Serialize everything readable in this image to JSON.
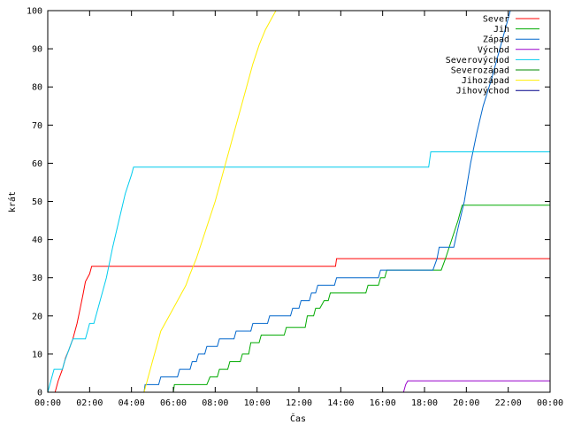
{
  "chart_data": {
    "type": "line",
    "xlabel": "Čas",
    "ylabel": "krát",
    "xlim": [
      0,
      24
    ],
    "ylim": [
      0,
      100
    ],
    "x_ticks": [
      {
        "value": 0,
        "label": "00:00"
      },
      {
        "value": 2,
        "label": "02:00"
      },
      {
        "value": 4,
        "label": "04:00"
      },
      {
        "value": 6,
        "label": "06:00"
      },
      {
        "value": 8,
        "label": "08:00"
      },
      {
        "value": 10,
        "label": "10:00"
      },
      {
        "value": 12,
        "label": "12:00"
      },
      {
        "value": 14,
        "label": "14:00"
      },
      {
        "value": 16,
        "label": "16:00"
      },
      {
        "value": 18,
        "label": "18:00"
      },
      {
        "value": 20,
        "label": "20:00"
      },
      {
        "value": 22,
        "label": "22:00"
      },
      {
        "value": 24,
        "label": "00:00"
      }
    ],
    "y_ticks": [
      0,
      10,
      20,
      30,
      40,
      50,
      60,
      70,
      80,
      90,
      100
    ],
    "grid": false,
    "legend_position": "top-right",
    "series": [
      {
        "name": "Sever",
        "color": "#ff0000",
        "points": [
          [
            0.35,
            0
          ],
          [
            0.5,
            3
          ],
          [
            0.7,
            6
          ],
          [
            0.85,
            9
          ],
          [
            1.0,
            11
          ],
          [
            1.2,
            14
          ],
          [
            1.4,
            18
          ],
          [
            1.55,
            22
          ],
          [
            1.7,
            26
          ],
          [
            1.8,
            29
          ],
          [
            2.0,
            31
          ],
          [
            2.1,
            33
          ],
          [
            13.75,
            33
          ],
          [
            13.8,
            35
          ],
          [
            24,
            35
          ]
        ]
      },
      {
        "name": "Jih",
        "color": "#00aa00",
        "points": [
          [
            6.0,
            0
          ],
          [
            6.05,
            2
          ],
          [
            7.6,
            2
          ],
          [
            7.75,
            4
          ],
          [
            8.1,
            4
          ],
          [
            8.2,
            6
          ],
          [
            8.6,
            6
          ],
          [
            8.7,
            8
          ],
          [
            9.2,
            8
          ],
          [
            9.3,
            10
          ],
          [
            9.6,
            10
          ],
          [
            9.7,
            13
          ],
          [
            10.1,
            13
          ],
          [
            10.2,
            15
          ],
          [
            11.3,
            15
          ],
          [
            11.4,
            17
          ],
          [
            12.3,
            17
          ],
          [
            12.4,
            20
          ],
          [
            12.7,
            20
          ],
          [
            12.8,
            22
          ],
          [
            13.0,
            22
          ],
          [
            13.2,
            24
          ],
          [
            13.4,
            24
          ],
          [
            13.5,
            26
          ],
          [
            15.2,
            26
          ],
          [
            15.3,
            28
          ],
          [
            15.8,
            28
          ],
          [
            15.9,
            30
          ],
          [
            16.1,
            30
          ],
          [
            16.2,
            32
          ],
          [
            18.8,
            32
          ],
          [
            19.0,
            35
          ],
          [
            19.3,
            40
          ],
          [
            19.6,
            45
          ],
          [
            19.8,
            49
          ],
          [
            24,
            49
          ]
        ]
      },
      {
        "name": "Západ",
        "color": "#0066cc",
        "points": [
          [
            4.6,
            0
          ],
          [
            4.65,
            2
          ],
          [
            5.3,
            2
          ],
          [
            5.4,
            4
          ],
          [
            6.2,
            4
          ],
          [
            6.3,
            6
          ],
          [
            6.8,
            6
          ],
          [
            6.9,
            8
          ],
          [
            7.1,
            8
          ],
          [
            7.2,
            10
          ],
          [
            7.5,
            10
          ],
          [
            7.6,
            12
          ],
          [
            8.1,
            12
          ],
          [
            8.2,
            14
          ],
          [
            8.9,
            14
          ],
          [
            9.0,
            16
          ],
          [
            9.7,
            16
          ],
          [
            9.8,
            18
          ],
          [
            10.5,
            18
          ],
          [
            10.6,
            20
          ],
          [
            11.6,
            20
          ],
          [
            11.7,
            22
          ],
          [
            12.0,
            22
          ],
          [
            12.1,
            24
          ],
          [
            12.5,
            24
          ],
          [
            12.6,
            26
          ],
          [
            12.8,
            26
          ],
          [
            12.9,
            28
          ],
          [
            13.7,
            28
          ],
          [
            13.8,
            30
          ],
          [
            15.8,
            30
          ],
          [
            15.9,
            32
          ],
          [
            18.4,
            32
          ],
          [
            18.6,
            35
          ],
          [
            18.7,
            38
          ],
          [
            19.4,
            38
          ],
          [
            19.6,
            43
          ],
          [
            19.9,
            50
          ],
          [
            20.2,
            60
          ],
          [
            20.5,
            68
          ],
          [
            20.8,
            75
          ],
          [
            21.2,
            82
          ],
          [
            21.6,
            90
          ],
          [
            22.0,
            98
          ],
          [
            22.1,
            100
          ]
        ]
      },
      {
        "name": "Východ",
        "color": "#9900cc",
        "points": [
          [
            17.0,
            0
          ],
          [
            17.1,
            2
          ],
          [
            17.2,
            3
          ],
          [
            24,
            3
          ]
        ]
      },
      {
        "name": "Severovýchod",
        "color": "#00ccee",
        "points": [
          [
            0.0,
            0
          ],
          [
            0.15,
            3
          ],
          [
            0.3,
            6
          ],
          [
            0.7,
            6
          ],
          [
            0.8,
            8
          ],
          [
            1.0,
            11
          ],
          [
            1.2,
            14
          ],
          [
            1.8,
            14
          ],
          [
            1.9,
            16
          ],
          [
            2.0,
            18
          ],
          [
            2.2,
            18
          ],
          [
            2.5,
            24
          ],
          [
            2.8,
            30
          ],
          [
            3.1,
            38
          ],
          [
            3.4,
            45
          ],
          [
            3.7,
            52
          ],
          [
            4.0,
            57
          ],
          [
            4.1,
            59
          ],
          [
            18.2,
            59
          ],
          [
            18.3,
            63
          ],
          [
            24,
            63
          ]
        ]
      },
      {
        "name": "Severozápad",
        "color": "#008800",
        "points": []
      },
      {
        "name": "Jihozápad",
        "color": "#ffee00",
        "points": [
          [
            4.6,
            0
          ],
          [
            4.8,
            4
          ],
          [
            5.0,
            8
          ],
          [
            5.2,
            12
          ],
          [
            5.4,
            16
          ],
          [
            5.7,
            19
          ],
          [
            6.0,
            22
          ],
          [
            6.3,
            25
          ],
          [
            6.6,
            28
          ],
          [
            6.8,
            31
          ],
          [
            7.1,
            35
          ],
          [
            7.4,
            40
          ],
          [
            7.7,
            45
          ],
          [
            8.0,
            50
          ],
          [
            8.3,
            56
          ],
          [
            8.6,
            62
          ],
          [
            8.9,
            68
          ],
          [
            9.2,
            74
          ],
          [
            9.5,
            80
          ],
          [
            9.8,
            86
          ],
          [
            10.1,
            91
          ],
          [
            10.4,
            95
          ],
          [
            10.7,
            98
          ],
          [
            10.9,
            100
          ]
        ]
      },
      {
        "name": "Jihovýchod",
        "color": "#000088",
        "points": []
      }
    ]
  }
}
